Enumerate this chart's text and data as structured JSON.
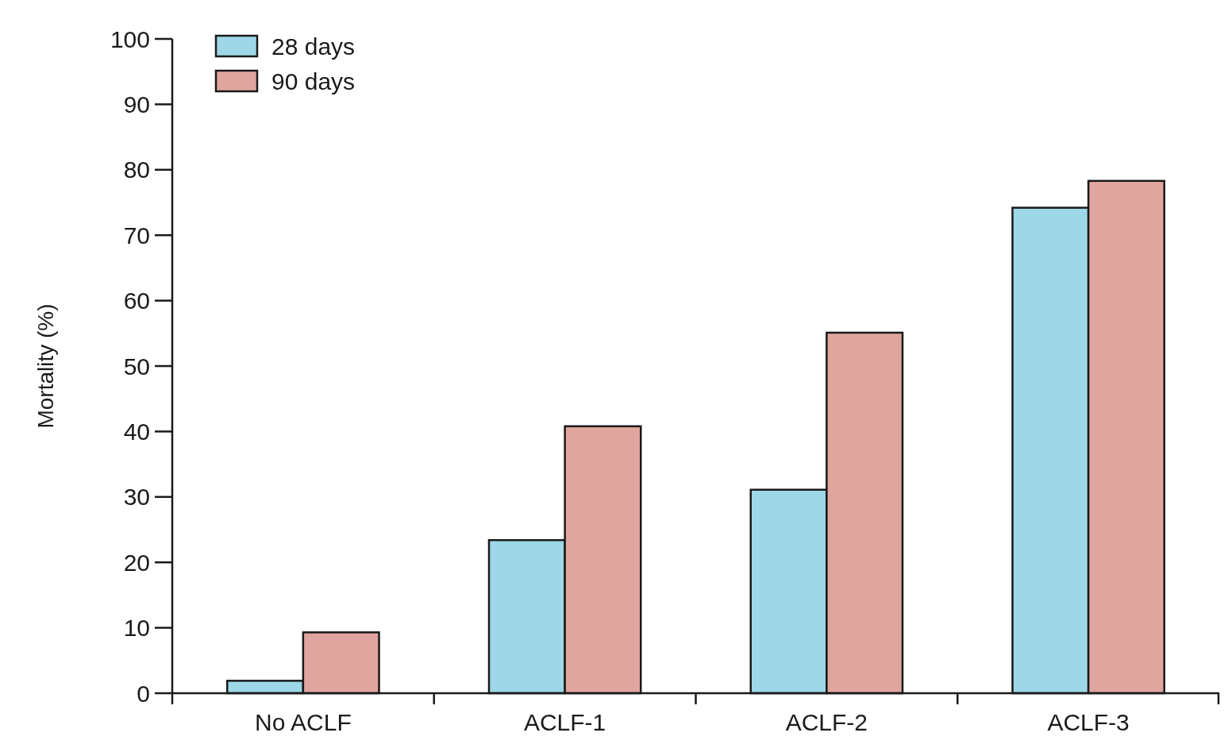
{
  "chart_data": {
    "type": "bar",
    "ylabel": "Mortality (%)",
    "categories": [
      "No ACLF",
      "ACLF-1",
      "ACLF-2",
      "ACLF-3"
    ],
    "series": [
      {
        "name": "28 days",
        "color": "#9dd7e8",
        "values": [
          1.9,
          23.4,
          31.1,
          74.2
        ]
      },
      {
        "name": "90 days",
        "color": "#e0a59f",
        "values": [
          9.3,
          40.8,
          55.1,
          78.3
        ]
      }
    ],
    "ylim": [
      0,
      100
    ],
    "yticks": [
      0,
      10,
      20,
      30,
      40,
      50,
      60,
      70,
      80,
      90,
      100
    ],
    "grid": false,
    "legend": "top left"
  }
}
